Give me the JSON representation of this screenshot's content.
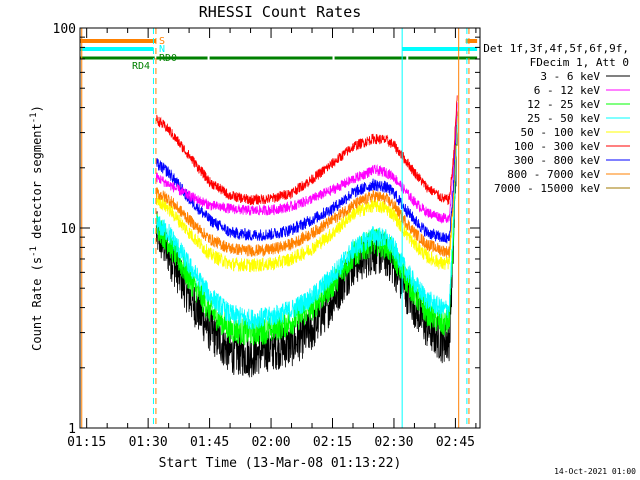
{
  "chart_data": {
    "type": "line",
    "title": "RHESSI Count Rates",
    "xlabel": "Start Time (13-Mar-08 01:13:22)",
    "ylabel": "Count Rate (s⁻¹ detector segment⁻¹)",
    "ylabel_main": "Count Rate (s",
    "ylabel_exp1": "-1",
    "ylabel_mid": " detector segment",
    "ylabel_exp2": "-1",
    "ylabel_end": ")",
    "y_scale": "log",
    "ylim": [
      1,
      100
    ],
    "y_ticks": [
      {
        "value": 1,
        "label": "1"
      },
      {
        "value": 10,
        "label": "10"
      },
      {
        "value": 100,
        "label": "100"
      }
    ],
    "xlim_minutes": [
      73.37,
      171.0
    ],
    "x_ticks": [
      {
        "minute": 75,
        "label": "01:15"
      },
      {
        "minute": 90,
        "label": "01:30"
      },
      {
        "minute": 105,
        "label": "01:45"
      },
      {
        "minute": 120,
        "label": "02:00"
      },
      {
        "minute": 135,
        "label": "02:15"
      },
      {
        "minute": 150,
        "label": "02:30"
      },
      {
        "minute": 165,
        "label": "02:45"
      }
    ],
    "legend_header": [
      "Det 1f,3f,4f,5f,6f,9f,",
      "FDecim 1, Att 0"
    ],
    "legend_position": "right",
    "series": [
      {
        "name": "3 - 6 keV",
        "color": "#000000",
        "x": [
          92,
          95,
          100,
          105,
          110,
          115,
          120,
          125,
          130,
          135,
          140,
          145,
          148,
          150,
          152,
          155,
          158,
          162,
          163.5,
          164.5,
          165.5
        ],
        "y": [
          9.5,
          7.5,
          4.6,
          3.1,
          2.4,
          2.3,
          2.5,
          2.6,
          3.1,
          4.4,
          6.6,
          7.6,
          7.3,
          6.5,
          5.3,
          4.1,
          3.2,
          2.7,
          2.8,
          8,
          35
        ]
      },
      {
        "name": "6 - 12 keV",
        "color": "#ff00ff",
        "x": [
          92,
          95,
          100,
          105,
          110,
          115,
          120,
          125,
          130,
          135,
          140,
          145,
          148,
          150,
          152,
          155,
          158,
          162,
          163.5,
          164.5,
          165.5
        ],
        "y": [
          18,
          16.5,
          14.5,
          13,
          12.5,
          12.2,
          12.3,
          12.8,
          14,
          15.5,
          17.5,
          19.5,
          19,
          18,
          16,
          13.5,
          12,
          11.2,
          11.3,
          20,
          45
        ]
      },
      {
        "name": "12 - 25 keV",
        "color": "#00ff00",
        "x": [
          92,
          95,
          100,
          105,
          110,
          115,
          120,
          125,
          130,
          135,
          140,
          145,
          148,
          150,
          152,
          155,
          158,
          162,
          163.5,
          164.5,
          165.5
        ],
        "y": [
          10.5,
          8.5,
          5.6,
          3.9,
          3.1,
          3.0,
          3.1,
          3.4,
          4.0,
          5.2,
          7.3,
          8.6,
          8.2,
          7.3,
          6.0,
          4.7,
          3.8,
          3.3,
          3.4,
          9,
          36
        ]
      },
      {
        "name": "25 - 50 keV",
        "color": "#00ffff",
        "x": [
          92,
          95,
          100,
          105,
          110,
          115,
          120,
          125,
          130,
          135,
          140,
          145,
          148,
          150,
          152,
          155,
          158,
          162,
          163.5,
          164.5,
          165.5
        ],
        "y": [
          10.5,
          9.5,
          6.5,
          4.6,
          3.7,
          3.5,
          3.6,
          3.9,
          4.5,
          5.8,
          7.8,
          9.2,
          8.8,
          7.9,
          6.6,
          5.3,
          4.4,
          3.9,
          4.0,
          10,
          37
        ]
      },
      {
        "name": "50 - 100 keV",
        "color": "#ffff00",
        "x": [
          92,
          95,
          100,
          105,
          110,
          115,
          120,
          125,
          130,
          135,
          140,
          145,
          148,
          150,
          152,
          155,
          158,
          162,
          163.5,
          164.5,
          165.5
        ],
        "y": [
          14,
          12.5,
          9.5,
          7.4,
          6.6,
          6.5,
          6.6,
          7.0,
          7.9,
          9.4,
          11.8,
          13,
          12.6,
          11.6,
          10,
          8.3,
          7.2,
          6.6,
          6.7,
          13,
          40
        ]
      },
      {
        "name": "100 - 300 keV",
        "color": "#ff0000",
        "x": [
          92,
          95,
          100,
          105,
          110,
          115,
          120,
          125,
          130,
          135,
          140,
          145,
          148,
          150,
          152,
          155,
          158,
          162,
          163.5,
          164.5,
          165.5
        ],
        "y": [
          35,
          31,
          23,
          17,
          14.5,
          13.8,
          14,
          15,
          17.5,
          21,
          25.5,
          28,
          27.5,
          26,
          23,
          19,
          16,
          14,
          13.8,
          22,
          48
        ]
      },
      {
        "name": "300 - 800 keV",
        "color": "#0000ff",
        "x": [
          92,
          95,
          100,
          105,
          110,
          115,
          120,
          125,
          130,
          135,
          140,
          145,
          148,
          150,
          152,
          155,
          158,
          162,
          163.5,
          164.5,
          165.5
        ],
        "y": [
          21,
          19,
          14,
          11,
          9.5,
          9.2,
          9.3,
          9.8,
          11,
          12.5,
          15,
          16.5,
          16,
          15,
          13,
          11,
          9.5,
          8.9,
          8.8,
          16,
          46
        ]
      },
      {
        "name": "800 - 7000 keV",
        "color": "#ff8000",
        "x": [
          92,
          95,
          100,
          105,
          110,
          115,
          120,
          125,
          130,
          135,
          140,
          145,
          148,
          150,
          152,
          155,
          158,
          162,
          163.5,
          164.5,
          165.5
        ],
        "y": [
          15,
          14,
          11,
          8.8,
          7.9,
          7.7,
          7.8,
          8.3,
          9.4,
          11,
          13,
          14.5,
          14,
          13,
          11.3,
          9.5,
          8.3,
          7.7,
          7.6,
          14,
          42
        ]
      },
      {
        "name": "7000 - 15000 keV",
        "color": "#a07800",
        "x": [],
        "y": []
      }
    ],
    "state_bars": [
      {
        "label": "S",
        "color": "#ff8000",
        "segments_minutes": [
          [
            73.37,
            91.9
          ],
          [
            167.5,
            170.3
          ]
        ]
      },
      {
        "label": "N",
        "color": "#00ffff",
        "segments_minutes": [
          [
            73.37,
            91.3
          ],
          [
            152.0,
            170.3
          ]
        ]
      },
      {
        "label": "RD0",
        "color": "#008000",
        "segments_minutes": [
          [
            92.0,
            104.5
          ],
          [
            105.0,
            135.0
          ],
          [
            135.5,
            153.0
          ],
          [
            153.5,
            170.3
          ]
        ]
      },
      {
        "label": "RD4",
        "color": "#008000",
        "segments_minutes": [
          [
            73.37,
            91.6
          ]
        ]
      }
    ],
    "markers": [
      {
        "minute": 73.37,
        "color": "#00ffff",
        "style": "solid"
      },
      {
        "minute": 73.8,
        "color": "#ff8000",
        "style": "solid"
      },
      {
        "minute": 91.3,
        "color": "#00ffff",
        "style": "dashed"
      },
      {
        "minute": 91.9,
        "color": "#ff8000",
        "style": "dashed"
      },
      {
        "minute": 152.0,
        "color": "#00ffff",
        "style": "solid"
      },
      {
        "minute": 165.8,
        "color": "#ff8000",
        "style": "solid"
      },
      {
        "minute": 167.8,
        "color": "#00ffff",
        "style": "dashed"
      },
      {
        "minute": 168.3,
        "color": "#ff8000",
        "style": "dashed"
      }
    ],
    "timestamp": "14-Oct-2021 01:00"
  }
}
